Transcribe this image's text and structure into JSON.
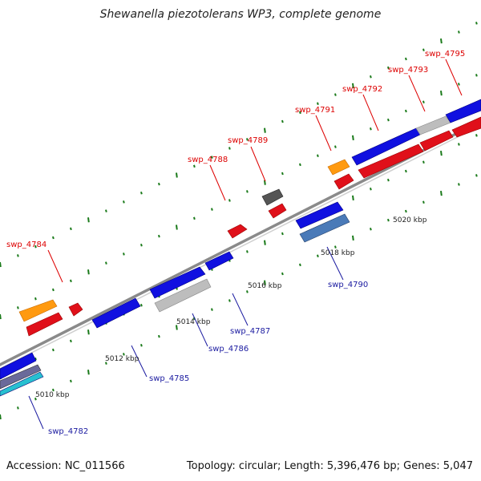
{
  "title": "Shewanella piezotolerans WP3, complete genome",
  "footer": {
    "accession": "Accession: NC_011566",
    "topology": "Topology: circular; Length: 5,396,476 bp; Genes: 5,047"
  },
  "colors": {
    "red_gene": "#e0101a",
    "blue_gene": "#1010e0",
    "orange_gene": "#ff9a10",
    "gray_gene": "#bdbdbd",
    "darkgray_gene": "#555555",
    "steel_gene": "#4a7ab8",
    "cyan_gene": "#27c0d0",
    "tick_green": "#1a7a1a",
    "backbone": "#8a8a8a",
    "label_red": "#dd0000",
    "label_blue": "#1a1aa0"
  },
  "scale_labels": [
    "5010 kbp",
    "5012 kbp",
    "5014 kbp",
    "5016 kbp",
    "5018 kbp",
    "5020 kbp"
  ],
  "gene_labels_top": [
    "swp_4784",
    "swp_4788",
    "swp_4789",
    "swp_4791",
    "swp_4792",
    "swp_4793",
    "swp_4795"
  ],
  "gene_labels_bottom": [
    "swp_4782",
    "swp_4785",
    "swp_4786",
    "swp_4787",
    "swp_4790"
  ]
}
